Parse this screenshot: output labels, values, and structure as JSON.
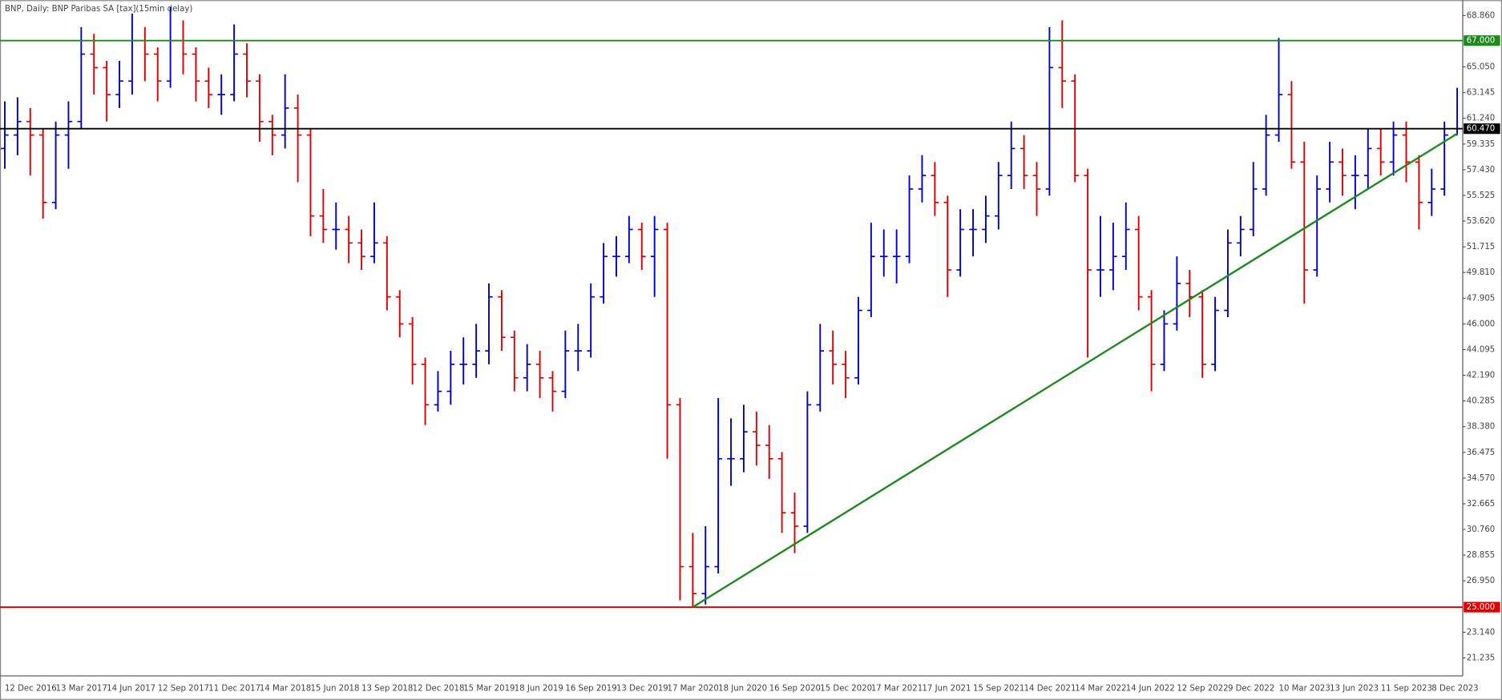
{
  "chart_data": {
    "type": "ohlc",
    "title": "BNP, Daily:  BNP Paribas SA [tax](15min delay)",
    "up_color": "#0000cc",
    "down_color": "#dd0000",
    "categories": [
      "12 Dec 2016",
      null,
      null,
      null,
      "13 Mar 2017",
      null,
      null,
      null,
      "14 Jun 2017",
      null,
      null,
      null,
      "12 Sep 2017",
      null,
      null,
      null,
      "11 Dec 2017",
      null,
      null,
      null,
      "14 Mar 2018",
      null,
      null,
      null,
      "15 Jun 2018",
      null,
      null,
      null,
      "13 Sep 2018",
      null,
      null,
      null,
      "12 Dec 2018",
      null,
      null,
      null,
      "15 Mar 2019",
      null,
      null,
      null,
      "18 Jun 2019",
      null,
      null,
      null,
      "16 Sep 2019",
      null,
      null,
      null,
      "13 Dec 2019",
      null,
      null,
      null,
      "17 Mar 2020",
      null,
      null,
      null,
      "18 Jun 2020",
      null,
      null,
      null,
      "16 Sep 2020",
      null,
      null,
      null,
      "15 Dec 2020",
      null,
      null,
      null,
      "17 Mar 2021",
      null,
      null,
      null,
      "17 Jun 2021",
      null,
      null,
      null,
      "15 Sep 2021",
      null,
      null,
      null,
      "14 Dec 2021",
      null,
      null,
      null,
      "14 Mar 2022",
      null,
      null,
      null,
      "14 Jun 2022",
      null,
      null,
      null,
      "12 Sep 2022",
      null,
      null,
      null,
      "9 Dec 2022",
      null,
      null,
      null,
      "10 Mar 2023",
      null,
      null,
      null,
      "13 Jun 2023",
      null,
      null,
      null,
      "11 Sep 2023",
      null,
      null,
      null,
      "8 Dec 2023",
      null,
      null
    ],
    "open": [
      59,
      60,
      61,
      60,
      55,
      60,
      61,
      66,
      65,
      63,
      64,
      67,
      66,
      64,
      67,
      66,
      64,
      63,
      63,
      66,
      64,
      61,
      60,
      62,
      60,
      54,
      53,
      53,
      52,
      51,
      52,
      48,
      46,
      43,
      40,
      41,
      43,
      43,
      44,
      48,
      45,
      42,
      43,
      42,
      41,
      44,
      44,
      48,
      51,
      51,
      53,
      51,
      53,
      40,
      28,
      26,
      28,
      36,
      36,
      38,
      37,
      36,
      32,
      31,
      40,
      44,
      43,
      42,
      47,
      51,
      51,
      51,
      56,
      57,
      55,
      50,
      53,
      53,
      54,
      57,
      59,
      57,
      56,
      65,
      64,
      57,
      50,
      50,
      51,
      53,
      48,
      43,
      46,
      49,
      48,
      43,
      47,
      52,
      53,
      56,
      60,
      63,
      58,
      50,
      56,
      58,
      57,
      57,
      59,
      58,
      60,
      58,
      55,
      56,
      60
    ],
    "high": [
      62.5,
      62.8,
      62,
      60.5,
      61,
      62.5,
      68,
      67.5,
      65.5,
      65.5,
      69,
      68,
      66.5,
      69.5,
      68.5,
      66.5,
      65,
      64.5,
      68.2,
      66.8,
      64.5,
      61.5,
      64.5,
      63,
      60.5,
      56,
      55,
      54,
      53,
      55,
      52.5,
      48.5,
      46.5,
      43.5,
      42.5,
      44,
      45,
      46,
      49,
      48.5,
      45.5,
      44.5,
      44,
      42.5,
      45.5,
      46,
      49,
      52,
      52.5,
      54,
      53.5,
      54,
      53.5,
      40.5,
      30.5,
      31,
      40.5,
      39,
      40,
      39.5,
      38.5,
      36.5,
      33.5,
      41,
      46,
      45.5,
      44,
      48,
      53.5,
      53,
      53,
      57,
      58.5,
      58,
      55.5,
      54.5,
      54.5,
      55.5,
      58,
      61,
      60,
      58,
      68,
      68.5,
      64.5,
      57.5,
      54,
      53.5,
      55,
      54,
      48.5,
      47,
      51,
      50,
      48.5,
      48,
      53,
      54,
      58,
      61.5,
      67.2,
      64,
      59.5,
      57,
      59.5,
      59,
      58.5,
      60.5,
      60.5,
      61,
      61,
      58.5,
      57.5,
      61,
      63.5
    ],
    "low": [
      57.5,
      58.5,
      57,
      53.8,
      54.5,
      57.5,
      60.5,
      63,
      61,
      62,
      63,
      64,
      62.5,
      63.5,
      64.5,
      62.5,
      62,
      61.5,
      62.5,
      62.8,
      59.5,
      58.5,
      59,
      56.5,
      52.5,
      52,
      51.5,
      50.5,
      50,
      50.5,
      47,
      45,
      41.5,
      38.5,
      39.5,
      40,
      41.5,
      42,
      43,
      44,
      41,
      41,
      40.5,
      39.5,
      40.5,
      42.5,
      43.5,
      47.5,
      49.5,
      50.5,
      50,
      48,
      36,
      25.5,
      25,
      25.2,
      27.5,
      34,
      35,
      35.5,
      34.5,
      30.5,
      29,
      30.5,
      39.5,
      41.5,
      40.5,
      41.5,
      46.5,
      49.5,
      49,
      50.5,
      55,
      54,
      48,
      49.5,
      51,
      52,
      53,
      56,
      56,
      54,
      55.5,
      62,
      56.5,
      43.5,
      48,
      48.5,
      50,
      47,
      41,
      42.5,
      45.5,
      46.5,
      42,
      42.5,
      46.5,
      51,
      52.5,
      55.5,
      59.5,
      57.5,
      47.5,
      49.5,
      55,
      55.5,
      54.5,
      56,
      57,
      57,
      56.5,
      53,
      54,
      55.5,
      60
    ],
    "close": [
      60,
      61,
      60,
      55,
      60,
      61,
      66,
      65,
      63,
      64,
      67,
      66,
      64,
      67,
      66,
      64,
      63,
      63,
      66,
      64,
      61,
      60,
      62,
      60,
      54,
      53,
      53,
      52,
      51,
      52,
      48,
      46,
      43,
      40,
      41,
      43,
      43,
      44,
      48,
      45,
      42,
      43,
      42,
      41,
      44,
      44,
      48,
      51,
      51,
      53,
      51,
      53,
      40,
      28,
      26,
      28,
      36,
      36,
      38,
      37,
      36,
      32,
      31,
      40,
      44,
      43,
      42,
      47,
      51,
      51,
      51,
      56,
      57,
      55,
      50,
      53,
      53,
      54,
      57,
      59,
      57,
      56,
      65,
      64,
      57,
      50,
      50,
      51,
      53,
      48,
      43,
      46,
      49,
      48,
      43,
      47,
      52,
      53,
      56,
      60,
      63,
      58,
      50,
      56,
      58,
      57,
      57,
      59,
      58,
      60,
      58,
      55,
      56,
      60,
      60.47
    ],
    "ylim": [
      19.9,
      70.0
    ],
    "yticks": [
      {
        "value": 68.86,
        "label": "68.860"
      },
      {
        "value": 65.05,
        "label": "65.050"
      },
      {
        "value": 63.145,
        "label": "63.145"
      },
      {
        "value": 61.24,
        "label": "61.240"
      },
      {
        "value": 59.335,
        "label": "59.335"
      },
      {
        "value": 57.43,
        "label": "57.430"
      },
      {
        "value": 55.525,
        "label": "55.525"
      },
      {
        "value": 53.62,
        "label": "53.620"
      },
      {
        "value": 51.715,
        "label": "51.715"
      },
      {
        "value": 49.81,
        "label": "49.810"
      },
      {
        "value": 47.905,
        "label": "47.905"
      },
      {
        "value": 46,
        "label": "46.000"
      },
      {
        "value": 44.095,
        "label": "44.095"
      },
      {
        "value": 42.19,
        "label": "42.190"
      },
      {
        "value": 40.285,
        "label": "40.285"
      },
      {
        "value": 38.38,
        "label": "38.380"
      },
      {
        "value": 36.475,
        "label": "36.475"
      },
      {
        "value": 34.57,
        "label": "34.570"
      },
      {
        "value": 32.665,
        "label": "32.665"
      },
      {
        "value": 30.76,
        "label": "30.760"
      },
      {
        "value": 28.855,
        "label": "28.855"
      },
      {
        "value": 26.95,
        "label": "26.950"
      },
      {
        "value": 23.14,
        "label": "23.140"
      },
      {
        "value": 21.235,
        "label": "21.235"
      }
    ],
    "hlines": [
      {
        "value": 67,
        "label": "67.000",
        "color": "#1e8a1e"
      },
      {
        "value": 60.47,
        "label": "60.470",
        "color": "#000000"
      },
      {
        "value": 25,
        "label": "25.000",
        "color": "#e00000"
      }
    ],
    "trendline": {
      "x": [
        54,
        114
      ],
      "y": [
        25,
        60.1
      ],
      "color": "#1e8a1e"
    }
  }
}
